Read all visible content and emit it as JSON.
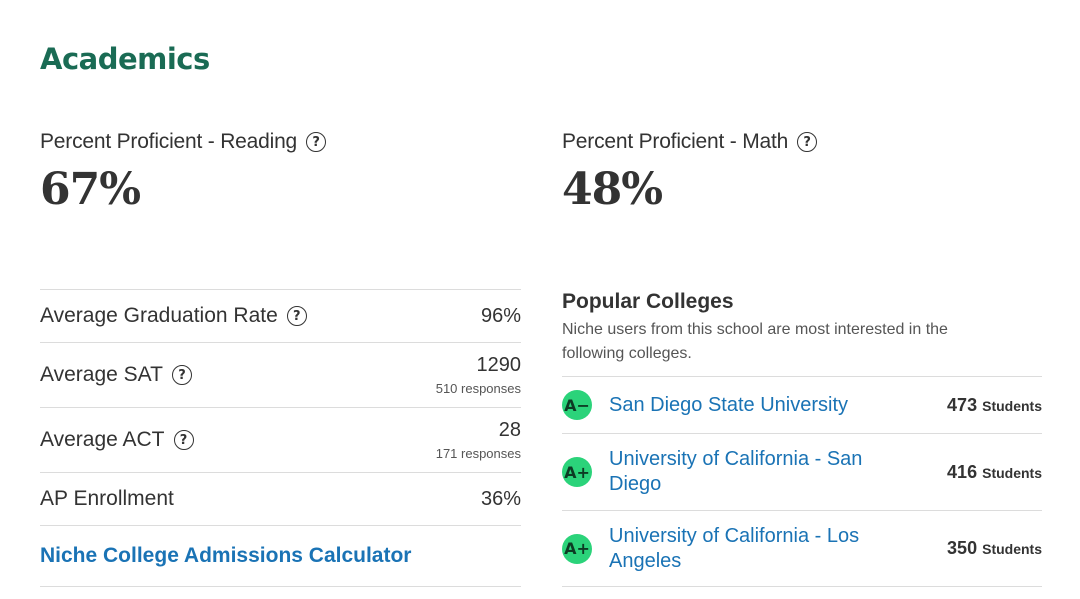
{
  "section": {
    "title": "Academics"
  },
  "proficiency": {
    "reading": {
      "label": "Percent Proficient - Reading",
      "value": "67%"
    },
    "math": {
      "label": "Percent Proficient - Math",
      "value": "48%"
    }
  },
  "help_icon_glyph": "?",
  "metrics": {
    "graduation": {
      "label": "Average Graduation Rate",
      "value": "96%"
    },
    "sat": {
      "label": "Average SAT",
      "value": "1290",
      "sub": "510 responses"
    },
    "act": {
      "label": "Average ACT",
      "value": "28",
      "sub": "171 responses"
    },
    "ap": {
      "label": "AP Enrollment",
      "value": "36%"
    },
    "calculator_link": "Niche College Admissions Calculator"
  },
  "popular_colleges": {
    "title": "Popular Colleges",
    "description": "Niche users from this school are most interested in the following colleges.",
    "items": [
      {
        "grade": "A−",
        "name": "San Diego State University",
        "count": "473",
        "unit": "Students"
      },
      {
        "grade": "A+",
        "name": "University of California - San Diego",
        "count": "416",
        "unit": "Students"
      },
      {
        "grade": "A+",
        "name": "University of California - Los Angeles",
        "count": "350",
        "unit": "Students"
      }
    ]
  },
  "colors": {
    "title_green": "#1a6b54",
    "link_blue": "#1a73b5",
    "grade_green": "#2bd37a"
  }
}
